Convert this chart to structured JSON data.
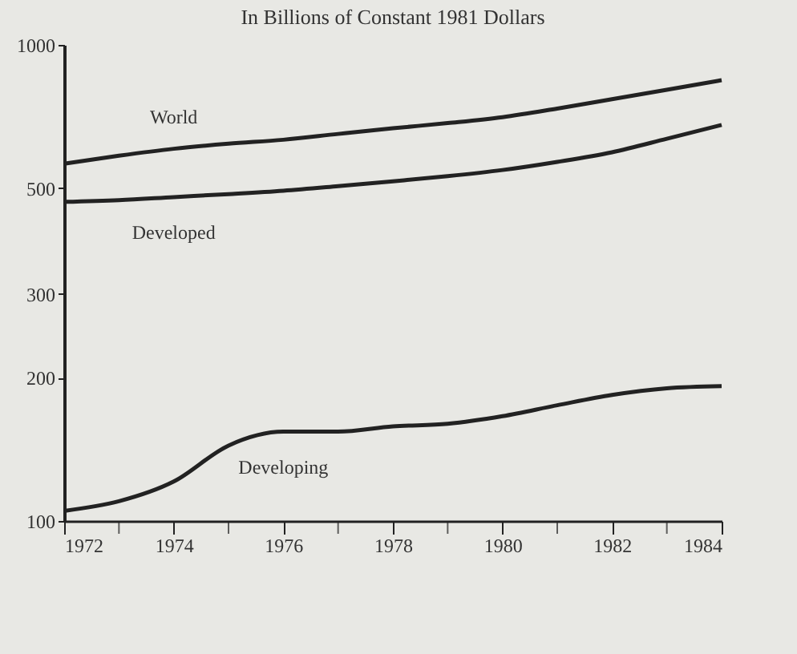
{
  "chart_data": {
    "type": "line",
    "title": "In Billions of Constant 1981 Dollars",
    "log": "y",
    "ylim": [
      100,
      1000
    ],
    "yticks": [
      100,
      200,
      300,
      500,
      1000
    ],
    "xlim": [
      1972,
      1984
    ],
    "xticks": [
      1972,
      {
        "value": 1973,
        "label": null
      },
      1974,
      {
        "value": 1975,
        "label": null
      },
      1976,
      {
        "value": 1977,
        "label": null
      },
      1978,
      {
        "value": 1979,
        "label": null
      },
      1980,
      {
        "value": 1981,
        "label": null
      },
      1982,
      {
        "value": 1983,
        "label": null
      },
      1984
    ],
    "x": [
      1972,
      1973,
      1974,
      1975,
      1976,
      1977,
      1978,
      1979,
      1980,
      1981,
      1982,
      1983,
      1984
    ],
    "series": [
      {
        "name": "World",
        "color": "#222222",
        "values": [
          563,
          585,
          605,
          620,
          632,
          650,
          668,
          685,
          705,
          735,
          769,
          805,
          843
        ]
      },
      {
        "name": "Developed",
        "color": "#222222",
        "values": [
          468,
          472,
          479,
          486,
          494,
          505,
          517,
          530,
          546,
          568,
          595,
          635,
          679
        ]
      },
      {
        "name": "Developing",
        "color": "#222222",
        "values": [
          105,
          110,
          121,
          144,
          154,
          154,
          158,
          160,
          166,
          175,
          184,
          190,
          192
        ]
      }
    ],
    "line_style": "solid",
    "marker": "none",
    "grid": false
  }
}
